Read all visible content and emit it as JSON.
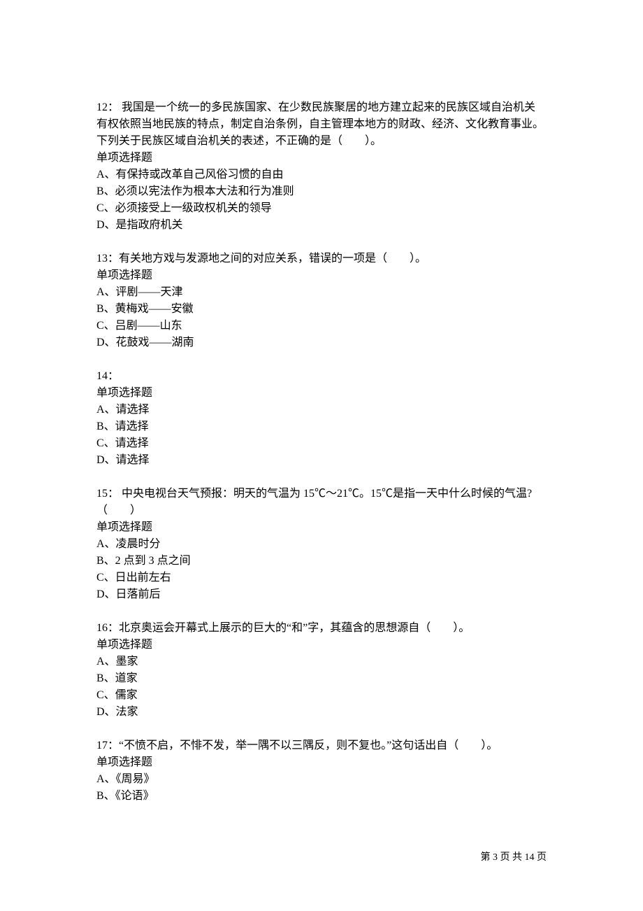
{
  "page": {
    "background_color": "#ffffff",
    "text_color": "#000000",
    "font_family": "SimSun",
    "body_fontsize": 16,
    "footer_fontsize": 14
  },
  "questions": [
    {
      "number": "12：",
      "text": " 我国是一个统一的多民族国家、在少数民族聚居的地方建立起来的民族区域自治机关有权依照当地民族的特点，制定自治条例，自主管理本地方的财政、经济、文化教育事业。下列关于民族区域自治机关的表述，不正确的是（　　）。",
      "type": "单项选择题",
      "options": {
        "a": "A、有保持或改革自己风俗习惯的自由",
        "b": "B、必须以宪法作为根本大法和行为准则",
        "c": "C、必须接受上一级政权机关的领导",
        "d": "D、是指政府机关"
      }
    },
    {
      "number": "13：",
      "text": "有关地方戏与发源地之间的对应关系，错误的一项是（　　）。",
      "type": "单项选择题",
      "options": {
        "a": "A、评剧——天津",
        "b": "B、黄梅戏——安徽",
        "c": "C、吕剧——山东",
        "d": "D、花鼓戏——湖南"
      }
    },
    {
      "number": "14：",
      "text": "",
      "type": "单项选择题",
      "options": {
        "a": "A、请选择",
        "b": "B、请选择",
        "c": "C、请选择",
        "d": "D、请选择"
      }
    },
    {
      "number": "15：",
      "text": " 中央电视台天气预报：明天的气温为 15℃～21℃。15℃是指一天中什么时候的气温?（　　）",
      "type": "单项选择题",
      "options": {
        "a": "A、凌晨时分",
        "b": "B、2 点到 3 点之间",
        "c": "C、日出前左右",
        "d": "D、日落前后"
      }
    },
    {
      "number": "16：",
      "text": "北京奥运会开幕式上展示的巨大的“和”字，其蕴含的思想源自（　　）。",
      "type": "单项选择题",
      "options": {
        "a": "A、墨家",
        "b": "B、道家",
        "c": "C、儒家",
        "d": "D、法家"
      }
    },
    {
      "number": "17：",
      "text": "“不愤不启，不悱不发，举一隅不以三隅反，则不复也。”这句话出自（　　）。",
      "type": "单项选择题",
      "options": {
        "a": "A、《周易》",
        "b": "B、《论语》"
      }
    }
  ],
  "footer": {
    "text": "第 3 页 共 14 页"
  }
}
